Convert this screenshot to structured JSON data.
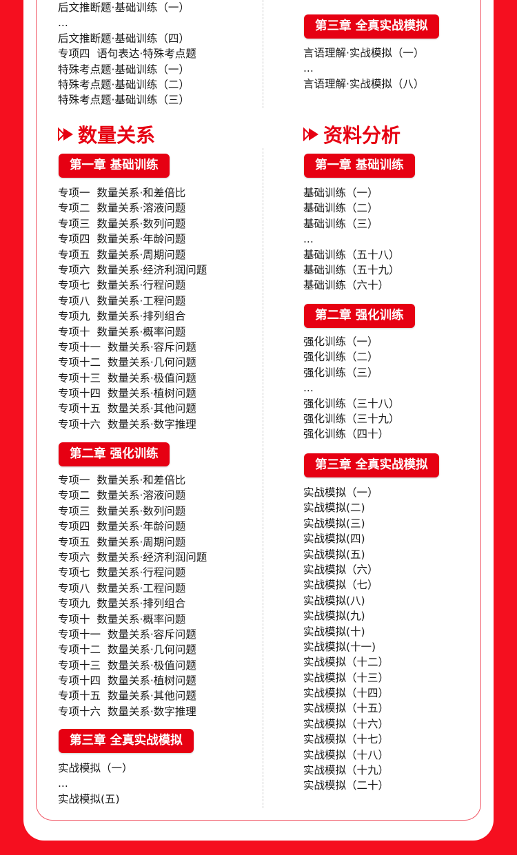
{
  "colors": {
    "accent": "#e60012",
    "background": "#f50f1f"
  },
  "top": {
    "left_items": [
      "后文推断题·基础训练（一）",
      "...",
      "后文推断题·基础训练（四）",
      "专项四  语句表达·特殊考点题",
      "特殊考点题·基础训练（一）",
      "特殊考点题·基础训练（二）",
      "特殊考点题·基础训练（三）"
    ],
    "right_badge": "第三章 全真实战模拟",
    "right_items": [
      "言语理解·实战模拟（一）",
      "...",
      "言语理解·实战模拟（八）"
    ]
  },
  "quant": {
    "title": "数量关系",
    "icon": "double-play-arrow-icon",
    "ch1": {
      "badge": "第一章 基础训练",
      "items": [
        "专项一  数量关系·和差倍比",
        "专项二  数量关系·溶液问题",
        "专项三  数量关系·数列问题",
        "专项四  数量关系·年龄问题",
        "专项五  数量关系·周期问题",
        "专项六  数量关系·经济利润问题",
        "专项七  数量关系·行程问题",
        "专项八  数量关系·工程问题",
        "专项九  数量关系·排列组合",
        "专项十  数量关系·概率问题",
        "专项十一  数量关系·容斥问题",
        "专项十二  数量关系·几何问题",
        "专项十三  数量关系·极值问题",
        "专项十四  数量关系·植树问题",
        "专项十五  数量关系·其他问题",
        "专项十六  数量关系·数字推理"
      ]
    },
    "ch2": {
      "badge": "第二章 强化训练",
      "items": [
        "专项一  数量关系·和差倍比",
        "专项二  数量关系·溶液问题",
        "专项三  数量关系·数列问题",
        "专项四  数量关系·年龄问题",
        "专项五  数量关系·周期问题",
        "专项六  数量关系·经济利润问题",
        "专项七  数量关系·行程问题",
        "专项八  数量关系·工程问题",
        "专项九  数量关系·排列组合",
        "专项十  数量关系·概率问题",
        "专项十一  数量关系·容斥问题",
        "专项十二  数量关系·几何问题",
        "专项十三  数量关系·极值问题",
        "专项十四  数量关系·植树问题",
        "专项十五  数量关系·其他问题",
        "专项十六  数量关系·数字推理"
      ]
    },
    "ch3": {
      "badge": "第三章 全真实战模拟",
      "items": [
        "实战模拟（一）",
        "...",
        "实战模拟(五)"
      ]
    }
  },
  "data_analysis": {
    "title": "资料分析",
    "icon": "double-play-arrow-icon",
    "ch1": {
      "badge": "第一章 基础训练",
      "items": [
        "基础训练（一）",
        "基础训练（二）",
        "基础训练（三）",
        "...",
        "基础训练（五十八）",
        "基础训练（五十九）",
        "基础训练（六十）"
      ]
    },
    "ch2": {
      "badge": "第二章 强化训练",
      "items": [
        "强化训练（一）",
        "强化训练（二）",
        "强化训练（三）",
        "...",
        "强化训练（三十八）",
        "强化训练（三十九）",
        "强化训练（四十）"
      ]
    },
    "ch3": {
      "badge": "第三章 全真实战模拟",
      "items": [
        "实战模拟（一）",
        "实战模拟(二)",
        "实战模拟(三)",
        "实战模拟(四)",
        "实战模拟(五)",
        "实战模拟（六）",
        "实战模拟（七）",
        "实战模拟(八)",
        "实战模拟(九)",
        "实战模拟(十)",
        "实战模拟(十一)",
        "实战模拟（十二）",
        "实战模拟（十三）",
        "实战模拟（十四）",
        "实战模拟（十五）",
        "实战模拟（十六）",
        "实战模拟（十七）",
        "实战模拟（十八）",
        "实战模拟（十九）",
        "实战模拟（二十）"
      ]
    }
  }
}
